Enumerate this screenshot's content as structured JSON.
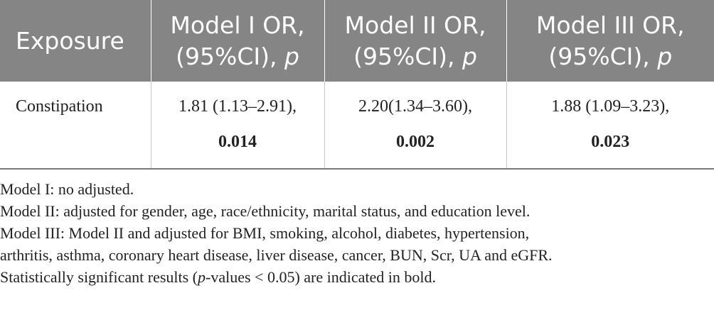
{
  "table": {
    "headers": [
      {
        "line1": "Exposure",
        "line2": "",
        "suffix": ""
      },
      {
        "line1": "Model I OR,",
        "line2": "(95%CI), ",
        "suffix": "p"
      },
      {
        "line1": "Model II OR,",
        "line2": "(95%CI), ",
        "suffix": "p"
      },
      {
        "line1": "Model III OR,",
        "line2": "(95%CI), ",
        "suffix": "p"
      }
    ],
    "rows": [
      {
        "exposure": "Constipation",
        "cells": [
          {
            "value": "1.81 (1.13–2.91),",
            "p": "0.014"
          },
          {
            "value": "2.20(1.34–3.60),",
            "p": "0.002"
          },
          {
            "value": "1.88 (1.09–3.23),",
            "p": "0.023"
          }
        ]
      }
    ]
  },
  "notes": {
    "model1": "Model I: no adjusted.",
    "model2": "Model II: adjusted for gender, age, race/ethnicity, marital status, and education level.",
    "model3_line1": "Model III: Model II and adjusted for BMI, smoking, alcohol, diabetes, hypertension,",
    "model3_line2": "arthritis, asthma, coronary heart disease, liver disease, cancer, BUN, Scr, UA and eGFR.",
    "significance_pre": "Statistically significant results (",
    "significance_ital": "p",
    "significance_post": "-values < 0.05) are indicated in bold."
  }
}
